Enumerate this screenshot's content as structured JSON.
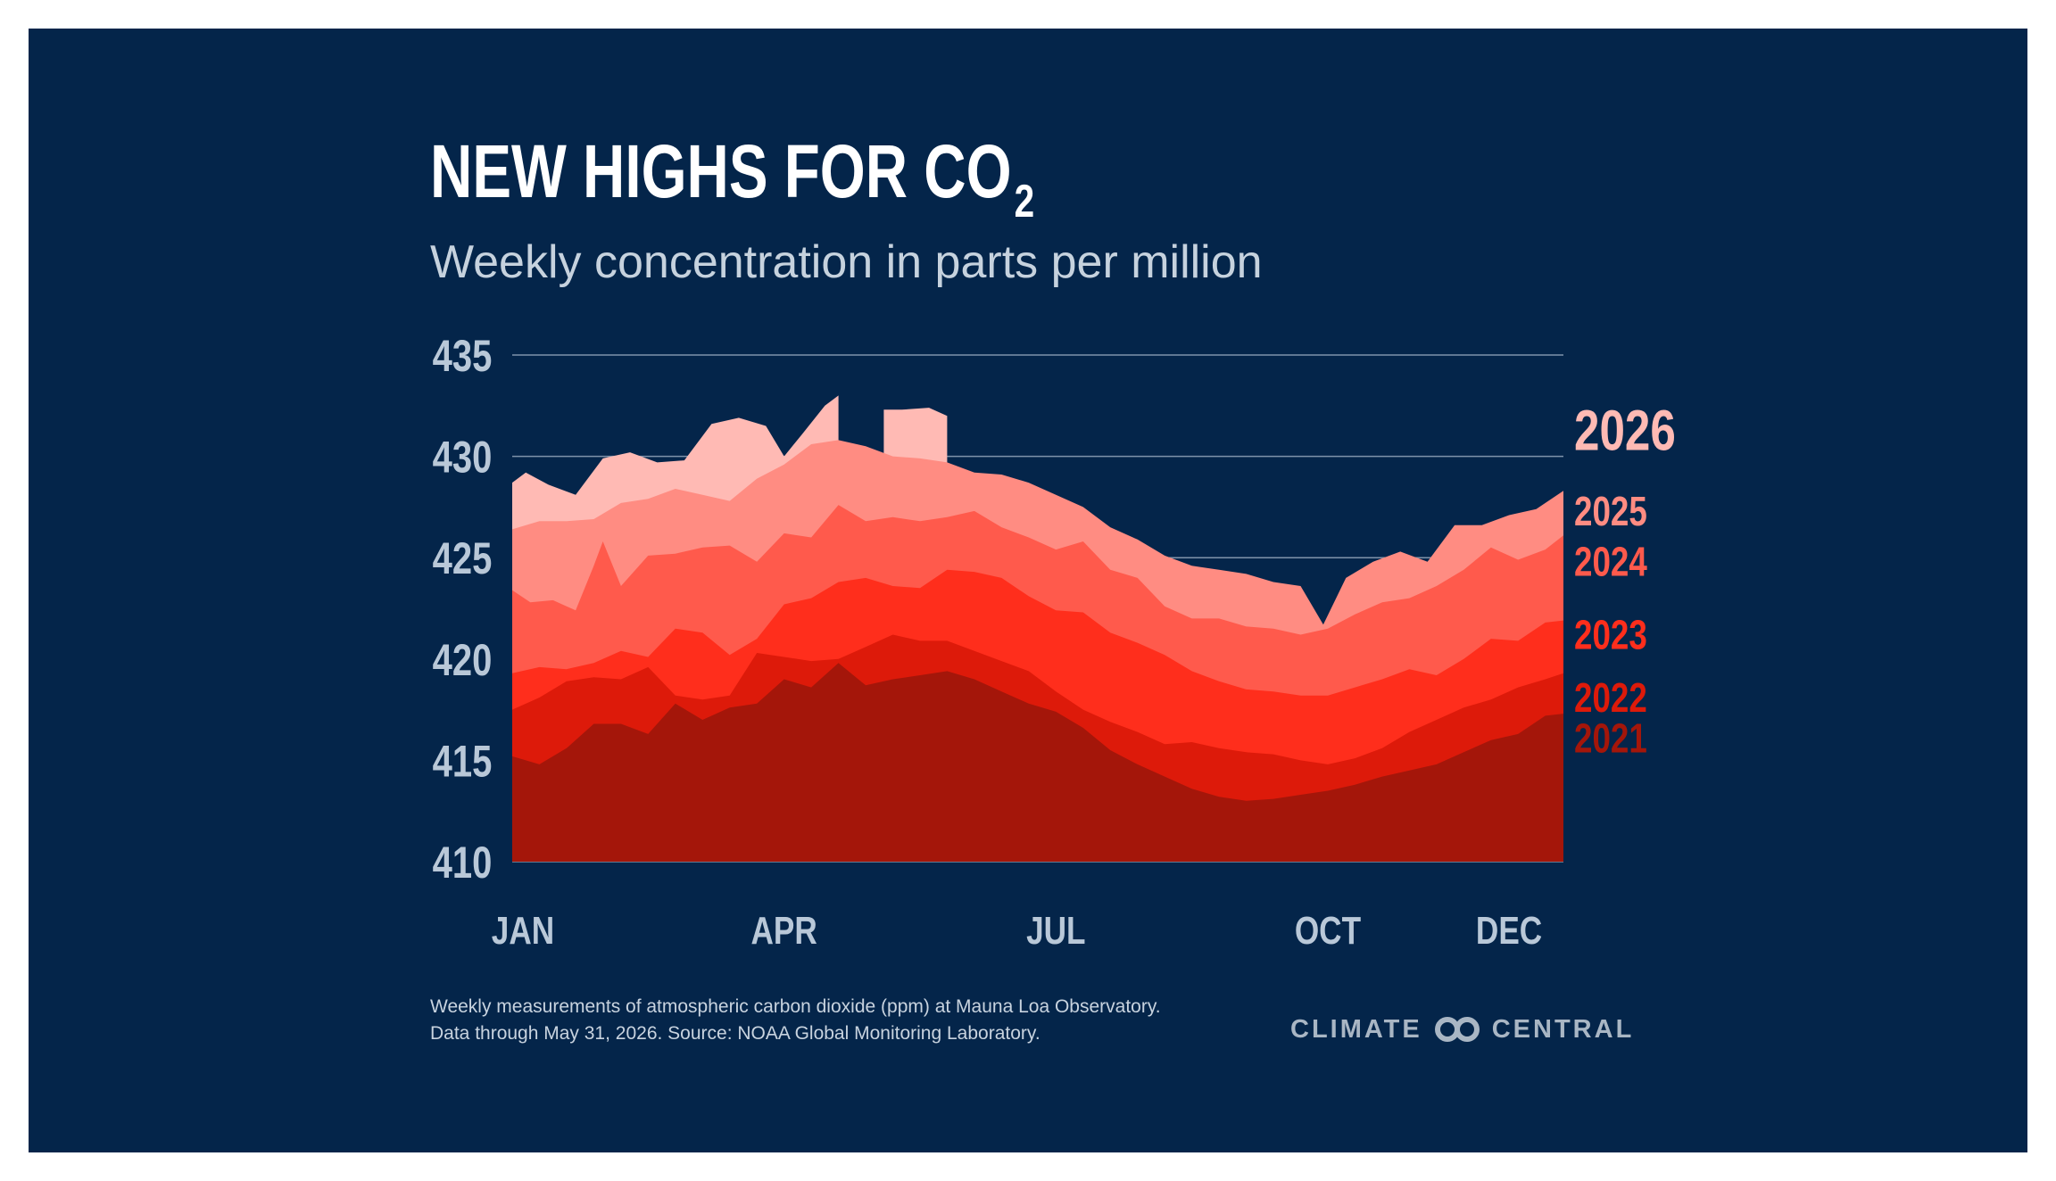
{
  "title": {
    "main": "NEW HIGHS FOR CO",
    "sub": "2"
  },
  "subtitle": "Weekly concentration in parts per million",
  "footnote": {
    "line1": "Weekly measurements of atmospheric carbon dioxide (ppm) at Mauna Loa Observatory.",
    "line2": "Data through May 31, 2026. Source: NOAA Global Monitoring Laboratory."
  },
  "brand": {
    "left": "CLIMATE",
    "right": "CENTRAL",
    "logo_icon": "linked-rings-icon"
  },
  "colors": {
    "background": "#04254a",
    "axis_text": "#b9c8d8",
    "series": {
      "2021": "#a4160a",
      "2022": "#dd1a0a",
      "2023": "#ff2e1c",
      "2024": "#ff5a4c",
      "2025": "#ff8c82",
      "2026": "#ffbab4"
    }
  },
  "chart_data": {
    "type": "area",
    "title": "NEW HIGHS FOR CO2",
    "subtitle": "Weekly concentration in parts per million",
    "ylim": [
      410,
      435
    ],
    "yticks": [
      410,
      415,
      420,
      425,
      430,
      435
    ],
    "grid": true,
    "xlim": [
      0,
      11.6
    ],
    "xticks": [
      {
        "label": "JAN",
        "month": 0
      },
      {
        "label": "APR",
        "month": 3
      },
      {
        "label": "JUL",
        "month": 6
      },
      {
        "label": "OCT",
        "month": 9
      },
      {
        "label": "DEC",
        "month": 11
      }
    ],
    "series": [
      {
        "name": "2026",
        "legend_y": 431.2,
        "x": [
          0,
          0.15,
          0.4,
          0.7,
          1.0,
          1.3,
          1.6,
          1.9,
          2.2,
          2.5,
          2.8,
          3.0,
          3.2,
          3.45,
          3.6
        ],
        "values": [
          428.7,
          429.2,
          428.6,
          428.1,
          429.9,
          430.2,
          429.7,
          429.8,
          431.6,
          431.9,
          431.5,
          430.0,
          431.1,
          432.5,
          433.0
        ]
      },
      {
        "name": "2026-late",
        "x": [
          4.1,
          4.3,
          4.6,
          4.8
        ],
        "values": [
          432.3,
          432.3,
          432.4,
          432.0
        ],
        "cap_only": true
      },
      {
        "name": "2025",
        "legend_y": 427.3,
        "x": [
          0,
          0.3,
          0.6,
          0.9,
          1.2,
          1.5,
          1.8,
          2.1,
          2.4,
          2.7,
          3.0,
          3.3,
          3.6,
          3.9,
          4.2,
          4.5,
          4.8,
          5.1,
          5.4,
          5.7,
          6.0,
          6.3,
          6.6,
          6.9,
          7.2,
          7.5,
          7.8,
          8.1,
          8.4,
          8.7,
          8.95,
          9.2,
          9.5,
          9.8,
          10.1,
          10.4,
          10.7,
          11.0,
          11.3,
          11.6
        ],
        "values": [
          426.4,
          426.8,
          426.8,
          426.9,
          427.7,
          427.9,
          428.4,
          428.1,
          427.8,
          428.9,
          429.6,
          430.6,
          430.8,
          430.5,
          430.0,
          429.9,
          429.7,
          429.2,
          429.1,
          428.7,
          428.1,
          427.5,
          426.5,
          425.9,
          425.1,
          424.6,
          424.4,
          424.2,
          423.8,
          423.6,
          421.7,
          424.0,
          424.8,
          425.3,
          424.8,
          426.6,
          426.6,
          427.1,
          427.4,
          428.3
        ]
      },
      {
        "name": "2024",
        "legend_y": 424.8,
        "x": [
          0,
          0.2,
          0.45,
          0.7,
          0.9,
          1.0,
          1.2,
          1.5,
          1.8,
          2.1,
          2.4,
          2.7,
          3.0,
          3.3,
          3.6,
          3.9,
          4.2,
          4.5,
          4.8,
          5.1,
          5.4,
          5.7,
          6.0,
          6.3,
          6.6,
          6.9,
          7.2,
          7.5,
          7.8,
          8.1,
          8.4,
          8.7,
          9.0,
          9.3,
          9.6,
          9.9,
          10.2,
          10.5,
          10.8,
          11.1,
          11.4,
          11.6
        ],
        "values": [
          423.4,
          422.8,
          422.9,
          422.4,
          424.6,
          425.8,
          423.6,
          425.1,
          425.2,
          425.5,
          425.6,
          424.8,
          426.2,
          426.0,
          427.6,
          426.8,
          427.0,
          426.8,
          427.0,
          427.3,
          426.5,
          426.0,
          425.4,
          425.8,
          424.4,
          424.0,
          422.6,
          422.0,
          422.0,
          421.6,
          421.5,
          421.2,
          421.5,
          422.2,
          422.8,
          423.0,
          423.6,
          424.4,
          425.5,
          424.9,
          425.4,
          426.1
        ]
      },
      {
        "name": "2023",
        "legend_y": 421.2,
        "x": [
          0,
          0.3,
          0.6,
          0.9,
          1.2,
          1.5,
          1.8,
          2.1,
          2.4,
          2.7,
          3.0,
          3.3,
          3.6,
          3.9,
          4.2,
          4.5,
          4.8,
          5.1,
          5.4,
          5.7,
          6.0,
          6.3,
          6.6,
          6.9,
          7.2,
          7.5,
          7.8,
          8.1,
          8.4,
          8.7,
          9.0,
          9.3,
          9.6,
          9.9,
          10.2,
          10.5,
          10.8,
          11.1,
          11.4,
          11.6
        ],
        "values": [
          419.3,
          419.6,
          419.5,
          419.8,
          420.4,
          420.1,
          421.5,
          421.3,
          420.2,
          421.0,
          422.7,
          423.0,
          423.8,
          424.0,
          423.6,
          423.5,
          424.4,
          424.3,
          424.0,
          423.1,
          422.4,
          422.3,
          421.3,
          420.8,
          420.2,
          419.4,
          418.9,
          418.5,
          418.4,
          418.2,
          418.2,
          418.6,
          419.0,
          419.5,
          419.2,
          420.0,
          421.0,
          420.9,
          421.8,
          421.9
        ]
      },
      {
        "name": "2022",
        "legend_y": 418.1,
        "x": [
          0,
          0.3,
          0.6,
          0.9,
          1.2,
          1.5,
          1.8,
          2.1,
          2.4,
          2.7,
          3.0,
          3.3,
          3.6,
          3.9,
          4.2,
          4.5,
          4.8,
          5.1,
          5.4,
          5.7,
          6.0,
          6.3,
          6.6,
          6.9,
          7.2,
          7.5,
          7.8,
          8.1,
          8.4,
          8.7,
          9.0,
          9.3,
          9.6,
          9.9,
          10.2,
          10.5,
          10.8,
          11.1,
          11.4,
          11.6
        ],
        "values": [
          417.5,
          418.1,
          418.9,
          419.1,
          419.0,
          419.6,
          418.2,
          418.0,
          418.2,
          420.3,
          420.1,
          419.9,
          420.0,
          420.6,
          421.2,
          420.9,
          420.9,
          420.4,
          419.9,
          419.4,
          418.4,
          417.5,
          416.9,
          416.4,
          415.8,
          415.9,
          415.6,
          415.4,
          415.3,
          415.0,
          414.8,
          415.1,
          415.6,
          416.4,
          417.0,
          417.6,
          418.0,
          418.6,
          419.0,
          419.3
        ]
      },
      {
        "name": "2021",
        "legend_y": 416.1,
        "x": [
          0,
          0.3,
          0.6,
          0.9,
          1.2,
          1.5,
          1.8,
          2.1,
          2.4,
          2.7,
          3.0,
          3.3,
          3.6,
          3.9,
          4.2,
          4.5,
          4.8,
          5.1,
          5.4,
          5.7,
          6.0,
          6.3,
          6.6,
          6.9,
          7.2,
          7.5,
          7.8,
          8.1,
          8.4,
          8.7,
          9.0,
          9.3,
          9.6,
          9.9,
          10.2,
          10.5,
          10.8,
          11.1,
          11.4,
          11.6
        ],
        "values": [
          415.2,
          414.8,
          415.6,
          416.8,
          416.8,
          416.3,
          417.8,
          417.0,
          417.6,
          417.8,
          419.0,
          418.6,
          419.8,
          418.7,
          419.0,
          419.2,
          419.4,
          419.0,
          418.4,
          417.8,
          417.4,
          416.6,
          415.5,
          414.8,
          414.2,
          413.6,
          413.2,
          413.0,
          413.1,
          413.3,
          413.5,
          413.8,
          414.2,
          414.5,
          414.8,
          415.4,
          416.0,
          416.3,
          417.2,
          417.3
        ]
      }
    ]
  }
}
